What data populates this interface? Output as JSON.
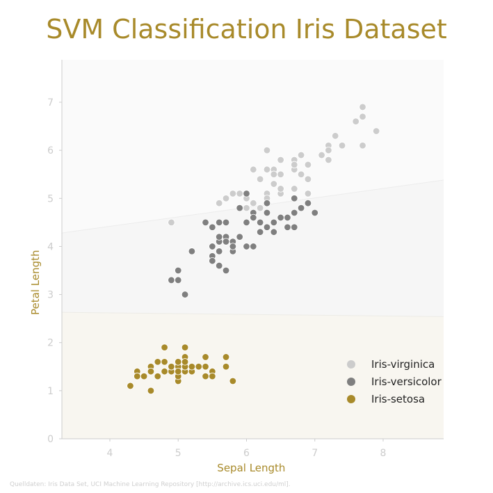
{
  "chart_data": {
    "type": "scatter",
    "title": "SVM Classification Iris Dataset",
    "xlabel": "Sepal Length",
    "ylabel": "Petal Length",
    "xlim": [
      3.3,
      8.9
    ],
    "ylim": [
      0,
      7.9
    ],
    "xticks": [
      "4",
      "5",
      "6",
      "7",
      "8"
    ],
    "yticks": [
      "0",
      "1",
      "2",
      "3",
      "4",
      "5",
      "6",
      "7"
    ],
    "grid": false,
    "legend_position": "bottom-right",
    "decision_boundaries": [
      {
        "between": [
          "Iris-setosa",
          "Iris-versicolor"
        ],
        "from": [
          3.3,
          2.63
        ],
        "to": [
          8.9,
          2.54
        ]
      },
      {
        "between": [
          "Iris-versicolor",
          "Iris-virginica"
        ],
        "from": [
          3.3,
          4.28
        ],
        "to": [
          8.9,
          5.38
        ]
      }
    ],
    "series": [
      {
        "name": "Iris-setosa",
        "color": "#a88a2a",
        "region_color": "#f8f6f0",
        "points": [
          [
            5.1,
            1.4
          ],
          [
            4.9,
            1.4
          ],
          [
            4.7,
            1.3
          ],
          [
            4.6,
            1.5
          ],
          [
            5.0,
            1.4
          ],
          [
            5.4,
            1.7
          ],
          [
            4.6,
            1.4
          ],
          [
            5.0,
            1.5
          ],
          [
            4.4,
            1.4
          ],
          [
            4.9,
            1.5
          ],
          [
            5.4,
            1.5
          ],
          [
            4.8,
            1.6
          ],
          [
            4.8,
            1.4
          ],
          [
            4.3,
            1.1
          ],
          [
            5.8,
            1.2
          ],
          [
            5.7,
            1.5
          ],
          [
            5.4,
            1.3
          ],
          [
            5.1,
            1.4
          ],
          [
            5.7,
            1.7
          ],
          [
            5.1,
            1.5
          ],
          [
            5.4,
            1.7
          ],
          [
            5.1,
            1.5
          ],
          [
            4.6,
            1.0
          ],
          [
            5.1,
            1.7
          ],
          [
            4.8,
            1.9
          ],
          [
            5.0,
            1.6
          ],
          [
            5.0,
            1.6
          ],
          [
            5.2,
            1.5
          ],
          [
            5.2,
            1.4
          ],
          [
            4.7,
            1.6
          ],
          [
            4.8,
            1.6
          ],
          [
            5.4,
            1.5
          ],
          [
            5.2,
            1.5
          ],
          [
            5.5,
            1.4
          ],
          [
            4.9,
            1.5
          ],
          [
            5.0,
            1.2
          ],
          [
            5.5,
            1.3
          ],
          [
            4.9,
            1.5
          ],
          [
            4.4,
            1.3
          ],
          [
            5.1,
            1.5
          ],
          [
            5.0,
            1.3
          ],
          [
            4.5,
            1.3
          ],
          [
            4.4,
            1.3
          ],
          [
            5.0,
            1.6
          ],
          [
            5.1,
            1.9
          ],
          [
            4.8,
            1.4
          ],
          [
            5.1,
            1.6
          ],
          [
            4.6,
            1.4
          ],
          [
            5.3,
            1.5
          ],
          [
            5.0,
            1.4
          ]
        ]
      },
      {
        "name": "Iris-versicolor",
        "color": "#7f7f7f",
        "region_color": "#f6f6f6",
        "points": [
          [
            7.0,
            4.7
          ],
          [
            6.4,
            4.5
          ],
          [
            6.9,
            4.9
          ],
          [
            5.5,
            4.0
          ],
          [
            6.5,
            4.6
          ],
          [
            5.7,
            4.5
          ],
          [
            6.3,
            4.7
          ],
          [
            4.9,
            3.3
          ],
          [
            6.6,
            4.6
          ],
          [
            5.2,
            3.9
          ],
          [
            5.0,
            3.5
          ],
          [
            5.9,
            4.2
          ],
          [
            6.0,
            4.0
          ],
          [
            6.1,
            4.7
          ],
          [
            5.6,
            3.6
          ],
          [
            6.7,
            4.4
          ],
          [
            5.6,
            4.5
          ],
          [
            5.8,
            4.1
          ],
          [
            6.2,
            4.5
          ],
          [
            5.6,
            3.9
          ],
          [
            5.9,
            4.8
          ],
          [
            6.1,
            4.0
          ],
          [
            6.3,
            4.9
          ],
          [
            6.1,
            4.7
          ],
          [
            6.4,
            4.3
          ],
          [
            6.6,
            4.4
          ],
          [
            6.8,
            4.8
          ],
          [
            6.7,
            5.0
          ],
          [
            6.0,
            4.5
          ],
          [
            5.7,
            3.5
          ],
          [
            5.5,
            3.8
          ],
          [
            5.5,
            3.7
          ],
          [
            5.8,
            3.9
          ],
          [
            6.0,
            5.1
          ],
          [
            5.4,
            4.5
          ],
          [
            6.0,
            4.5
          ],
          [
            6.7,
            4.7
          ],
          [
            6.3,
            4.4
          ],
          [
            5.6,
            4.1
          ],
          [
            5.5,
            4.0
          ],
          [
            5.5,
            4.4
          ],
          [
            6.1,
            4.6
          ],
          [
            5.8,
            4.0
          ],
          [
            5.0,
            3.3
          ],
          [
            5.6,
            4.2
          ],
          [
            5.7,
            4.2
          ],
          [
            5.7,
            4.2
          ],
          [
            6.2,
            4.3
          ],
          [
            5.1,
            3.0
          ],
          [
            5.7,
            4.1
          ]
        ]
      },
      {
        "name": "Iris-virginica",
        "color": "#cccccc",
        "region_color": "#fafafa",
        "points": [
          [
            6.3,
            6.0
          ],
          [
            5.8,
            5.1
          ],
          [
            7.1,
            5.9
          ],
          [
            6.3,
            5.6
          ],
          [
            6.5,
            5.8
          ],
          [
            7.6,
            6.6
          ],
          [
            4.9,
            4.5
          ],
          [
            7.3,
            6.3
          ],
          [
            6.7,
            5.8
          ],
          [
            7.2,
            6.1
          ],
          [
            6.5,
            5.1
          ],
          [
            6.4,
            5.3
          ],
          [
            6.8,
            5.5
          ],
          [
            5.7,
            5.0
          ],
          [
            5.8,
            5.1
          ],
          [
            6.4,
            5.3
          ],
          [
            6.5,
            5.5
          ],
          [
            7.7,
            6.7
          ],
          [
            7.7,
            6.9
          ],
          [
            6.0,
            5.0
          ],
          [
            6.9,
            5.7
          ],
          [
            5.6,
            4.9
          ],
          [
            7.7,
            6.7
          ],
          [
            6.3,
            4.9
          ],
          [
            6.7,
            5.7
          ],
          [
            7.2,
            6.0
          ],
          [
            6.2,
            4.8
          ],
          [
            6.1,
            4.9
          ],
          [
            6.4,
            5.6
          ],
          [
            7.2,
            5.8
          ],
          [
            7.4,
            6.1
          ],
          [
            7.9,
            6.4
          ],
          [
            6.4,
            5.6
          ],
          [
            6.3,
            5.1
          ],
          [
            6.1,
            5.6
          ],
          [
            7.7,
            6.1
          ],
          [
            6.3,
            5.6
          ],
          [
            6.4,
            5.5
          ],
          [
            6.0,
            4.8
          ],
          [
            6.9,
            5.4
          ],
          [
            6.7,
            5.6
          ],
          [
            6.9,
            5.1
          ],
          [
            5.8,
            5.1
          ],
          [
            6.8,
            5.9
          ],
          [
            6.7,
            5.7
          ],
          [
            6.7,
            5.2
          ],
          [
            6.3,
            5.0
          ],
          [
            6.5,
            5.2
          ],
          [
            6.2,
            5.4
          ],
          [
            5.9,
            5.1
          ]
        ]
      }
    ],
    "legend_order": [
      "Iris-virginica",
      "Iris-versicolor",
      "Iris-setosa"
    ]
  },
  "source": "Quelldaten: Iris Data Set, UCI Machine Learning Repository [http://archive.ics.uci.edu/ml]."
}
